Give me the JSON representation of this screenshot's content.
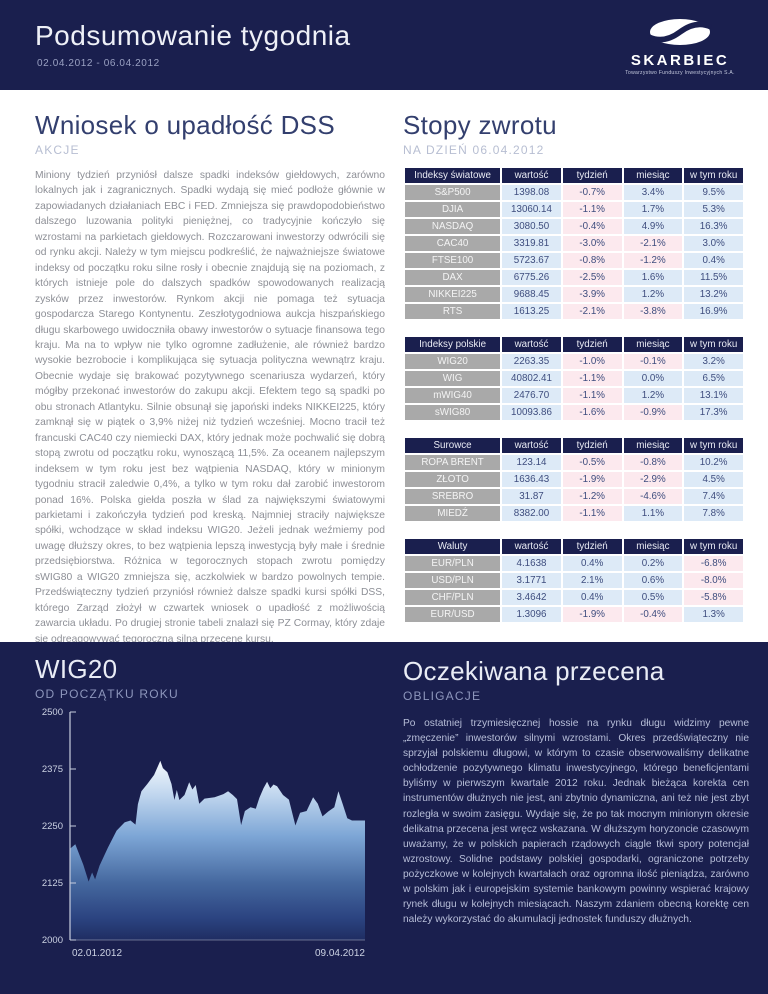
{
  "colors": {
    "navy": "#1a1f4e",
    "positive_cell": "#ddeaf7",
    "negative_cell": "#fce9ee",
    "value_text": "#3e4d7e",
    "label_cell": "#a9a9a9"
  },
  "header": {
    "title": "Podsumowanie tygodnia",
    "date_range": "02.04.2012 - 06.04.2012",
    "logo": {
      "name": "SKARBIEC",
      "tagline": "Towarzystwo Funduszy Inwestycyjnych S.A."
    }
  },
  "left_article": {
    "title": "Wniosek o upadłość DSS",
    "category": "AKCJE",
    "body": "Miniony tydzień przyniósł dalsze spadki indeksów giełdowych, zarówno lokalnych jak i zagranicznych. Spadki wydają się mieć podłoże głównie w zapowiadanych działaniach EBC i FED. Zmniejsza się prawdopodobieństwo dalszego luzowania polityki pieniężnej, co tradycyjnie kończyło się wzrostami na parkietach giełdowych. Rozczarowani inwestorzy odwrócili się od rynku akcji. Należy w tym miejscu podkreślić, że najważniejsze światowe indeksy od początku roku silne rosły i obecnie znajdują się na poziomach, z których istnieje pole do dalszych spadków spowodowanych realizacją zysków przez inwestorów. Rynkom akcji nie pomaga też sytuacja gospodarcza Starego Kontynentu. Zeszłotygodniowa aukcja hiszpańskiego długu skarbowego uwidoczniła obawy inwestorów o sytuacje finansowa tego kraju. Ma na to wpływ nie tylko ogromne zadłużenie, ale również bardzo wysokie bezrobocie i komplikująca się sytuacja polityczna wewnątrz kraju. Obecnie wydaje się brakować pozytywnego scenariusza wydarzeń, który mógłby przekonać inwestorów do zakupu akcji. Efektem tego są spadki po obu stronach Atlantyku. Silnie obsunął się japoński indeks NIKKEI225, który zamknął się w piątek o 3,9% niżej niż tydzień wcześniej. Mocno tracił też francuski CAC40 czy niemiecki DAX, który jednak może pochwalić się dobrą stopą zwrotu od początku roku, wynoszącą 11,5%. Za oceanem najlepszym indeksem w tym roku jest bez wątpienia NASDAQ, który w minionym tygodniu stracił zaledwie 0,4%, a tylko w tym roku dał zarobić inwestorom ponad 16%. Polska giełda poszła w ślad za największymi światowymi parkietami i zakończyła tydzień pod kreską. Najmniej straciły największe spółki, wchodzące w skład indeksu WIG20. Jeżeli jednak weźmiemy pod uwagę dłuższy okres, to bez wątpienia lepszą inwestycją były małe i średnie przedsiębiorstwa. Różnica w tegorocznych stopach zwrotu pomiędzy sWIG80 a WIG20 zmniejsza się, aczkolwiek w bardzo powolnych tempie. Przedświąteczny tydzień przyniósł również dalsze spadki kursi spółki DSS, którego Zarząd złożył w czwartek wniosek o upadłość z możliwością zawarcia układu. Po drugiej stronie tabeli znalazł się PZ Cormay, który zdaje się odreagowywać tegoroczną silną przecenę kursu."
  },
  "returns_section": {
    "title": "Stopy zwrotu",
    "subtitle": "NA DZIEŃ 06.04.2012",
    "columns": [
      "wartość",
      "tydzień",
      "miesiąc",
      "w tym roku"
    ],
    "tables": [
      {
        "name": "Indeksy światowe",
        "rows": [
          {
            "label": "S&P500",
            "values": [
              "1398.08",
              "-0.7%",
              "3.4%",
              "9.5%"
            ]
          },
          {
            "label": "DJIA",
            "values": [
              "13060.14",
              "-1.1%",
              "1.7%",
              "5.3%"
            ]
          },
          {
            "label": "NASDAQ",
            "values": [
              "3080.50",
              "-0.4%",
              "4.9%",
              "16.3%"
            ]
          },
          {
            "label": "CAC40",
            "values": [
              "3319.81",
              "-3.0%",
              "-2.1%",
              "3.0%"
            ]
          },
          {
            "label": "FTSE100",
            "values": [
              "5723.67",
              "-0.8%",
              "-1.2%",
              "0.4%"
            ]
          },
          {
            "label": "DAX",
            "values": [
              "6775.26",
              "-2.5%",
              "1.6%",
              "11.5%"
            ]
          },
          {
            "label": "NIKKEI225",
            "values": [
              "9688.45",
              "-3.9%",
              "1.2%",
              "13.2%"
            ]
          },
          {
            "label": "RTS",
            "values": [
              "1613.25",
              "-2.1%",
              "-3.8%",
              "16.9%"
            ]
          }
        ]
      },
      {
        "name": "Indeksy polskie",
        "rows": [
          {
            "label": "WIG20",
            "values": [
              "2263.35",
              "-1.0%",
              "-0.1%",
              "3.2%"
            ]
          },
          {
            "label": "WIG",
            "values": [
              "40802.41",
              "-1.1%",
              "0.0%",
              "6.5%"
            ]
          },
          {
            "label": "mWIG40",
            "values": [
              "2476.70",
              "-1.1%",
              "1.2%",
              "13.1%"
            ]
          },
          {
            "label": "sWIG80",
            "values": [
              "10093.86",
              "-1.6%",
              "-0.9%",
              "17.3%"
            ]
          }
        ]
      },
      {
        "name": "Surowce",
        "rows": [
          {
            "label": "ROPA BRENT",
            "values": [
              "123.14",
              "-0.5%",
              "-0.8%",
              "10.2%"
            ]
          },
          {
            "label": "ZŁOTO",
            "values": [
              "1636.43",
              "-1.9%",
              "-2.9%",
              "4.5%"
            ]
          },
          {
            "label": "SREBRO",
            "values": [
              "31.87",
              "-1.2%",
              "-4.6%",
              "7.4%"
            ]
          },
          {
            "label": "MIEDŹ",
            "values": [
              "8382.00",
              "-1.1%",
              "1.1%",
              "7.8%"
            ]
          }
        ]
      },
      {
        "name": "Waluty",
        "rows": [
          {
            "label": "EUR/PLN",
            "values": [
              "4.1638",
              "0.4%",
              "0.2%",
              "-6.8%"
            ]
          },
          {
            "label": "USD/PLN",
            "values": [
              "3.1771",
              "2.1%",
              "0.6%",
              "-8.0%"
            ]
          },
          {
            "label": "CHF/PLN",
            "values": [
              "3.4642",
              "0.4%",
              "0.5%",
              "-5.8%"
            ]
          },
          {
            "label": "EUR/USD",
            "values": [
              "1.3096",
              "-1.9%",
              "-0.4%",
              "1.3%"
            ]
          }
        ]
      }
    ]
  },
  "footer_article": {
    "title": "Oczekiwana przecena",
    "category": "OBLIGACJE",
    "body": "Po ostatniej trzymiesięcznej hossie na rynku długu widzimy pewne „zmęczenie” inwestorów silnymi wzrostami. Okres przedświąteczny nie sprzyjał polskiemu długowi, w którym to czasie obserwowaliśmy delikatne ochłodzenie pozytywnego klimatu inwestycyjnego, którego beneficjentami byliśmy w pierwszym kwartale 2012 roku. Jednak bieżąca korekta cen instrumentów dłużnych nie jest, ani zbytnio dynamiczna, ani też nie jest zbyt rozległa w swoim zasięgu. Wydaje się, że po tak mocnym minionym okresie delikatna przecena jest wręcz wskazana. W dłuższym horyzoncie czasowym uważamy, że w polskich papierach rządowych ciągle tkwi spory potencjał wzrostowy. Solidne podstawy polskiej gospodarki, ograniczone potrzeby pożyczkowe w kolejnych kwartałach oraz ogromna ilość pieniądza, zarówno w polskim jak i europejskim  systemie bankowym powinny  wspierać krajowy rynek długu w kolejnych miesiącach. Naszym zdaniem obecną korektę cen należy wykorzystać do akumulacji jednostek funduszy dłużnych."
  },
  "chart_data": {
    "type": "area",
    "title": "WIG20",
    "subtitle": "OD POCZĄTKU ROKU",
    "ylim": [
      2000,
      2500
    ],
    "yticks": [
      2500,
      2375,
      2250,
      2125,
      2000
    ],
    "xlabels": [
      "02.01.2012",
      "09.04.2012"
    ],
    "grid": false,
    "series": [
      {
        "name": "WIG20",
        "points": [
          [
            0.0,
            2200
          ],
          [
            0.018,
            2210
          ],
          [
            0.045,
            2165
          ],
          [
            0.063,
            2128
          ],
          [
            0.075,
            2148
          ],
          [
            0.085,
            2133
          ],
          [
            0.1,
            2163
          ],
          [
            0.128,
            2202
          ],
          [
            0.158,
            2240
          ],
          [
            0.185,
            2258
          ],
          [
            0.205,
            2262
          ],
          [
            0.222,
            2253
          ],
          [
            0.23,
            2298
          ],
          [
            0.242,
            2326
          ],
          [
            0.262,
            2342
          ],
          [
            0.285,
            2362
          ],
          [
            0.3,
            2384
          ],
          [
            0.306,
            2393
          ],
          [
            0.315,
            2377
          ],
          [
            0.33,
            2368
          ],
          [
            0.344,
            2342
          ],
          [
            0.354,
            2307
          ],
          [
            0.362,
            2329
          ],
          [
            0.371,
            2307
          ],
          [
            0.388,
            2318
          ],
          [
            0.404,
            2346
          ],
          [
            0.415,
            2330
          ],
          [
            0.426,
            2340
          ],
          [
            0.438,
            2299
          ],
          [
            0.456,
            2310
          ],
          [
            0.49,
            2313
          ],
          [
            0.52,
            2320
          ],
          [
            0.536,
            2326
          ],
          [
            0.552,
            2318
          ],
          [
            0.566,
            2309
          ],
          [
            0.58,
            2252
          ],
          [
            0.593,
            2283
          ],
          [
            0.612,
            2291
          ],
          [
            0.63,
            2288
          ],
          [
            0.642,
            2312
          ],
          [
            0.656,
            2333
          ],
          [
            0.668,
            2347
          ],
          [
            0.679,
            2333
          ],
          [
            0.69,
            2341
          ],
          [
            0.702,
            2337
          ],
          [
            0.722,
            2318
          ],
          [
            0.742,
            2308
          ],
          [
            0.764,
            2251
          ],
          [
            0.78,
            2279
          ],
          [
            0.802,
            2283
          ],
          [
            0.824,
            2313
          ],
          [
            0.84,
            2299
          ],
          [
            0.856,
            2271
          ],
          [
            0.876,
            2282
          ],
          [
            0.896,
            2291
          ],
          [
            0.91,
            2326
          ],
          [
            0.924,
            2299
          ],
          [
            0.94,
            2267
          ],
          [
            0.956,
            2262
          ],
          [
            1.0,
            2262
          ]
        ]
      }
    ]
  }
}
